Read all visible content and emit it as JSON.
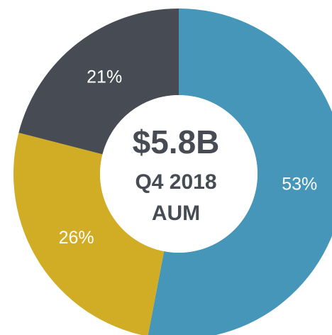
{
  "chart_data": {
    "type": "donut",
    "values": [
      53,
      26,
      21
    ],
    "value_labels": [
      "53%",
      "26%",
      "21%"
    ],
    "colors": [
      "#4596b8",
      "#d1ad25",
      "#474c54"
    ],
    "center_text": [
      "$5.8B",
      "Q4 2018",
      "AUM"
    ]
  }
}
